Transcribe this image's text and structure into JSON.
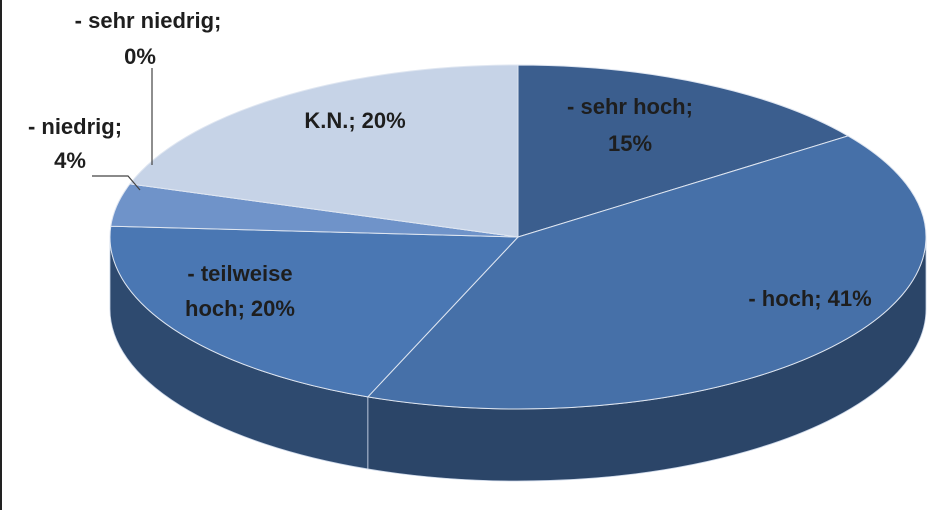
{
  "chart_data": {
    "type": "pie",
    "categories": [
      "- sehr hoch;",
      "- hoch;",
      "- teilweise hoch;",
      "- niedrig;",
      "- sehr niedrig;",
      "K.N.;"
    ],
    "values": [
      15,
      41,
      20,
      4,
      0,
      20
    ],
    "value_labels": [
      "15%",
      "41%",
      "20%",
      "4%",
      "0%",
      "20%"
    ],
    "colors": [
      "#3b5e8e",
      "#4670a8",
      "#4a77b3",
      "#6f93c9",
      "#8faad6",
      "#c6d3e7"
    ]
  }
}
